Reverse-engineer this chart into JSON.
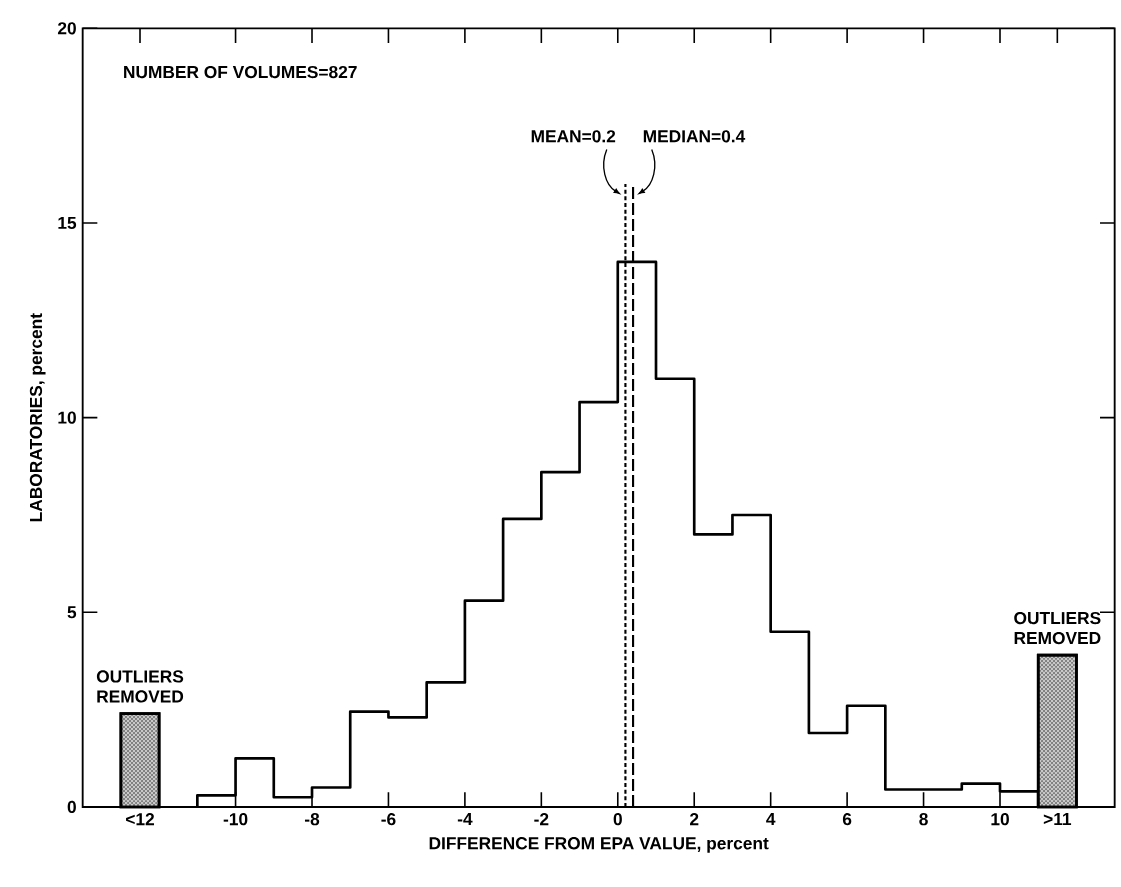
{
  "chart_data": {
    "type": "histogram",
    "xlabel": "DIFFERENCE FROM EPA VALUE, percent",
    "ylabel": "LABORATORIES, percent",
    "series": [
      {
        "color": "#000000",
        "bins": [
          -11,
          -10,
          -9,
          -8,
          -7,
          -6,
          -5,
          -4,
          -3,
          -2,
          -1,
          0,
          1,
          2,
          3,
          4,
          5,
          6,
          7,
          8,
          9,
          10,
          11
        ],
        "values": [
          0.3,
          1.25,
          0.25,
          0.5,
          2.45,
          2.3,
          3.2,
          5.3,
          7.4,
          8.6,
          10.4,
          14,
          11,
          7,
          7.5,
          4.5,
          1.9,
          2.6,
          0.45,
          0.45,
          0.6,
          0.4
        ]
      },
      {
        "type": "bar",
        "color": "#c8c8c8",
        "x": [
          -12.5,
          11.5
        ],
        "values": [
          2.4,
          3.9
        ]
      }
    ],
    "xlim": [
      -14,
      13
    ],
    "ylim": [
      0,
      20
    ],
    "xticks": [
      {
        "value": -12.5,
        "label": "<12"
      },
      -10,
      -8,
      -6,
      -4,
      -2,
      0,
      2,
      4,
      6,
      8,
      10,
      {
        "value": 11.5,
        "label": ">11"
      }
    ],
    "yticks": [
      0,
      5,
      10,
      15,
      20
    ],
    "ref_lines": [
      {
        "axis": "x",
        "value": 0.2,
        "label": "MEAN=0.2",
        "line_style": "dotted"
      },
      {
        "axis": "x",
        "value": 0.4,
        "label": "MEDIAN=0.4",
        "line_style": "dashed"
      }
    ],
    "annotations": [
      "NUMBER OF VOLUMES=827",
      {
        "text": "OUTLIERS REMOVED",
        "x": -12.5,
        "y": 2.4
      },
      {
        "text": "OUTLIERS REMOVED",
        "x": 11.5,
        "y": 3.9
      }
    ],
    "grid": false
  }
}
